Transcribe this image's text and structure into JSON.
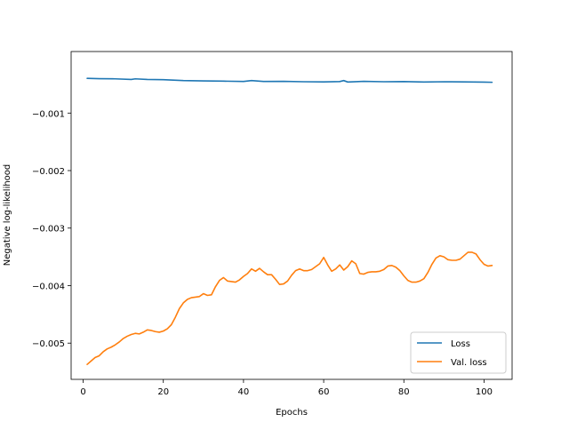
{
  "chart_data": {
    "type": "line",
    "title": "",
    "xlabel": "Epochs",
    "ylabel": "Negative log-likelihood",
    "xlim": [
      -3,
      107
    ],
    "ylim": [
      -0.00563,
      7e-05
    ],
    "xticks": [
      0,
      20,
      40,
      60,
      80,
      100
    ],
    "xtick_labels": [
      "0",
      "20",
      "40",
      "60",
      "80",
      "100"
    ],
    "yticks": [
      -0.001,
      -0.002,
      -0.003,
      -0.004,
      -0.005
    ],
    "ytick_labels": [
      "−0.001",
      "−0.002",
      "−0.003",
      "−0.004",
      "−0.005"
    ],
    "legend": {
      "position": "bottom-right"
    },
    "grid": false,
    "series": [
      {
        "name": "Loss",
        "color": "#1f77b4",
        "x": [
          1,
          4,
          8,
          12,
          13,
          16,
          20,
          25,
          30,
          35,
          40,
          42,
          45,
          50,
          55,
          60,
          64,
          65,
          66,
          70,
          75,
          80,
          85,
          90,
          95,
          100,
          102
        ],
        "y": [
          -0.000397,
          -0.000402,
          -0.000405,
          -0.000415,
          -0.000405,
          -0.000415,
          -0.00042,
          -0.000435,
          -0.00044,
          -0.000445,
          -0.00045,
          -0.000435,
          -0.00045,
          -0.000448,
          -0.000455,
          -0.000458,
          -0.000452,
          -0.000435,
          -0.00046,
          -0.000448,
          -0.000455,
          -0.000452,
          -0.00046,
          -0.000455,
          -0.000458,
          -0.000462,
          -0.000465
        ]
      },
      {
        "name": "Val. loss",
        "color": "#ff7f0e",
        "x": [
          1,
          2,
          3,
          4,
          5,
          6,
          7,
          8,
          9,
          10,
          11,
          12,
          13,
          14,
          15,
          16,
          17,
          18,
          19,
          20,
          21,
          22,
          23,
          24,
          25,
          26,
          27,
          28,
          29,
          30,
          31,
          32,
          33,
          34,
          35,
          36,
          37,
          38,
          39,
          40,
          41,
          42,
          43,
          44,
          45,
          46,
          47,
          48,
          49,
          50,
          51,
          52,
          53,
          54,
          55,
          56,
          57,
          58,
          59,
          60,
          61,
          62,
          63,
          64,
          65,
          66,
          67,
          68,
          69,
          70,
          71,
          72,
          73,
          74,
          75,
          76,
          77,
          78,
          79,
          80,
          81,
          82,
          83,
          84,
          85,
          86,
          87,
          88,
          89,
          90,
          91,
          92,
          93,
          94,
          95,
          96,
          97,
          98,
          99,
          100,
          101,
          102
        ],
        "y": [
          -0.00537,
          -0.00531,
          -0.00525,
          -0.00522,
          -0.00515,
          -0.0051,
          -0.00507,
          -0.00503,
          -0.00498,
          -0.00492,
          -0.00488,
          -0.00485,
          -0.00483,
          -0.00484,
          -0.00481,
          -0.00477,
          -0.00478,
          -0.0048,
          -0.00481,
          -0.00479,
          -0.00475,
          -0.00468,
          -0.00455,
          -0.0044,
          -0.0043,
          -0.00424,
          -0.00421,
          -0.0042,
          -0.00419,
          -0.00414,
          -0.00417,
          -0.00416,
          -0.00402,
          -0.00391,
          -0.00386,
          -0.00392,
          -0.00393,
          -0.00394,
          -0.0039,
          -0.00384,
          -0.00379,
          -0.00371,
          -0.00375,
          -0.0037,
          -0.00376,
          -0.00381,
          -0.00381,
          -0.00389,
          -0.00398,
          -0.00397,
          -0.00392,
          -0.00382,
          -0.00374,
          -0.00371,
          -0.00374,
          -0.00374,
          -0.00372,
          -0.00367,
          -0.00362,
          -0.00351,
          -0.00364,
          -0.00375,
          -0.00371,
          -0.00364,
          -0.00373,
          -0.00367,
          -0.00357,
          -0.00362,
          -0.00379,
          -0.0038,
          -0.00377,
          -0.00376,
          -0.00376,
          -0.00375,
          -0.00372,
          -0.00366,
          -0.00365,
          -0.00368,
          -0.00374,
          -0.00383,
          -0.00391,
          -0.00394,
          -0.00394,
          -0.00392,
          -0.00388,
          -0.00377,
          -0.00363,
          -0.00352,
          -0.00348,
          -0.0035,
          -0.00355,
          -0.00356,
          -0.00356,
          -0.00354,
          -0.00348,
          -0.00342,
          -0.00342,
          -0.00345,
          -0.00355,
          -0.00363,
          -0.00366,
          -0.00365
        ]
      }
    ]
  }
}
